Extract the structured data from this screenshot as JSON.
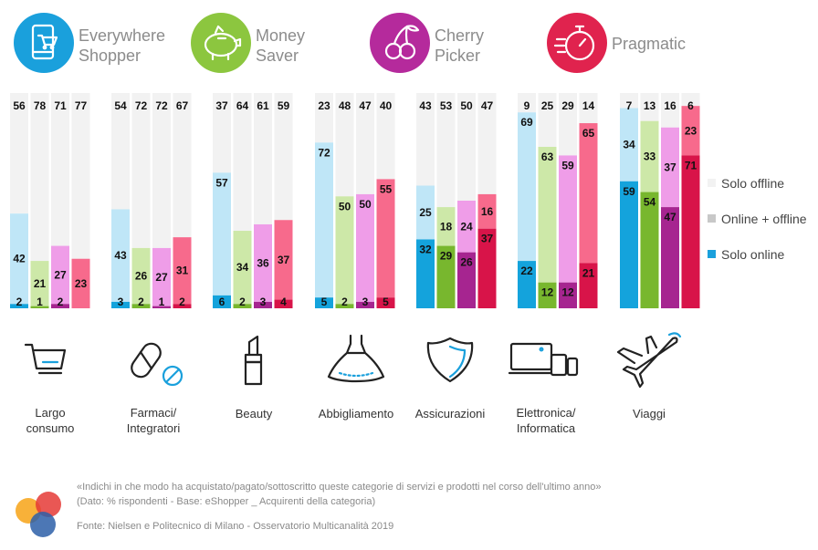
{
  "personas": [
    {
      "id": "everywhere",
      "name_lines": [
        "Everywhere",
        "Shopper"
      ],
      "icon": "shopping-phone-icon",
      "color": "#1aa0dc",
      "colors": {
        "offline": "#f2f2f2",
        "mixed": "#bfe6f7",
        "online": "#14a3dc"
      }
    },
    {
      "id": "money",
      "name_lines": [
        "Money",
        "Saver"
      ],
      "icon": "piggy-bank-icon",
      "color": "#8cc63f",
      "colors": {
        "offline": "#f2f2f2",
        "mixed": "#cde8a8",
        "online": "#78b72e"
      }
    },
    {
      "id": "cherry",
      "name_lines": [
        "Cherry",
        "Picker"
      ],
      "icon": "cherry-icon",
      "color": "#b52a9c",
      "colors": {
        "offline": "#f2f2f2",
        "mixed": "#ef9de8",
        "online": "#a62590"
      }
    },
    {
      "id": "pragmatic",
      "name_lines": [
        "Pragmatic"
      ],
      "icon": "stopwatch-icon",
      "color": "#e0234e",
      "colors": {
        "offline": "#f2f2f2",
        "mixed": "#f76a8c",
        "online": "#d81449"
      }
    }
  ],
  "legend": {
    "items": [
      {
        "label": "Solo offline",
        "color": "#f2f2f2"
      },
      {
        "label": "Online + offline",
        "color": "#c8c8c8"
      },
      {
        "label": "Solo online",
        "color": "#1aa0dc"
      }
    ]
  },
  "chart_data": {
    "type": "bar",
    "stacked": true,
    "normalized_percent": true,
    "categories": [
      {
        "label": [
          "Largo",
          "consumo"
        ],
        "icon": "shopping-cart-icon"
      },
      {
        "label": [
          "Farmaci/",
          "Integratori"
        ],
        "icon": "pill-icon"
      },
      {
        "label": [
          "Beauty"
        ],
        "icon": "lipstick-icon"
      },
      {
        "label": [
          "Abbigliamento"
        ],
        "icon": "dress-icon"
      },
      {
        "label": [
          "Assicurazioni"
        ],
        "icon": "shield-icon"
      },
      {
        "label": [
          "Elettronica/",
          "Informatica"
        ],
        "icon": "devices-icon"
      },
      {
        "label": [
          "Viaggi"
        ],
        "icon": "airplane-icon"
      }
    ],
    "series_order": [
      "Everywhere Shopper",
      "Money Saver",
      "Cherry Picker",
      "Pragmatic"
    ],
    "values": [
      [
        {
          "offline": 56,
          "mixed": 42,
          "online": 2
        },
        {
          "offline": 78,
          "mixed": 21,
          "online": 1
        },
        {
          "offline": 71,
          "mixed": 27,
          "online": 2
        },
        {
          "offline": 77,
          "mixed": 23,
          "online": 0
        }
      ],
      [
        {
          "offline": 54,
          "mixed": 43,
          "online": 3
        },
        {
          "offline": 72,
          "mixed": 26,
          "online": 2
        },
        {
          "offline": 72,
          "mixed": 27,
          "online": 1
        },
        {
          "offline": 67,
          "mixed": 31,
          "online": 2
        }
      ],
      [
        {
          "offline": 37,
          "mixed": 57,
          "online": 6
        },
        {
          "offline": 64,
          "mixed": 34,
          "online": 2
        },
        {
          "offline": 61,
          "mixed": 36,
          "online": 3
        },
        {
          "offline": 59,
          "mixed": 37,
          "online": 4
        }
      ],
      [
        {
          "offline": 23,
          "mixed": 72,
          "online": 5
        },
        {
          "offline": 48,
          "mixed": 50,
          "online": 2
        },
        {
          "offline": 47,
          "mixed": 50,
          "online": 3
        },
        {
          "offline": 40,
          "mixed": 55,
          "online": 5
        }
      ],
      [
        {
          "offline": 43,
          "mixed": 25,
          "online": 32
        },
        {
          "offline": 53,
          "mixed": 18,
          "online": 29
        },
        {
          "offline": 50,
          "mixed": 24,
          "online": 26
        },
        {
          "offline": 47,
          "mixed": 16,
          "online": 37
        }
      ],
      [
        {
          "offline": 9,
          "mixed": 69,
          "online": 22
        },
        {
          "offline": 25,
          "mixed": 63,
          "online": 12
        },
        {
          "offline": 29,
          "mixed": 59,
          "online": 12
        },
        {
          "offline": 14,
          "mixed": 65,
          "online": 21
        }
      ],
      [
        {
          "offline": 7,
          "mixed": 34,
          "online": 59
        },
        {
          "offline": 13,
          "mixed": 33,
          "online": 54
        },
        {
          "offline": 16,
          "mixed": 37,
          "online": 47
        },
        {
          "offline": 6,
          "mixed": 23,
          "online": 71
        }
      ]
    ],
    "ylim": [
      0,
      100
    ]
  },
  "footnote": {
    "line1": "«Indichi in che modo ha acquistato/pagato/sottoscritto queste categorie di servizi e prodotti nel corso dell'ultimo anno»",
    "line2": "(Dato: % rispondenti - Base: eShopper _ Acquirenti della categoria)",
    "source": "Fonte: Nielsen e Politecnico di Milano - Osservatorio Multicanalità 2019"
  },
  "logo": {
    "name": "osservatorio-logo-icon",
    "colors": [
      "#f7a823",
      "#e53a36",
      "#2d5fa8"
    ]
  }
}
